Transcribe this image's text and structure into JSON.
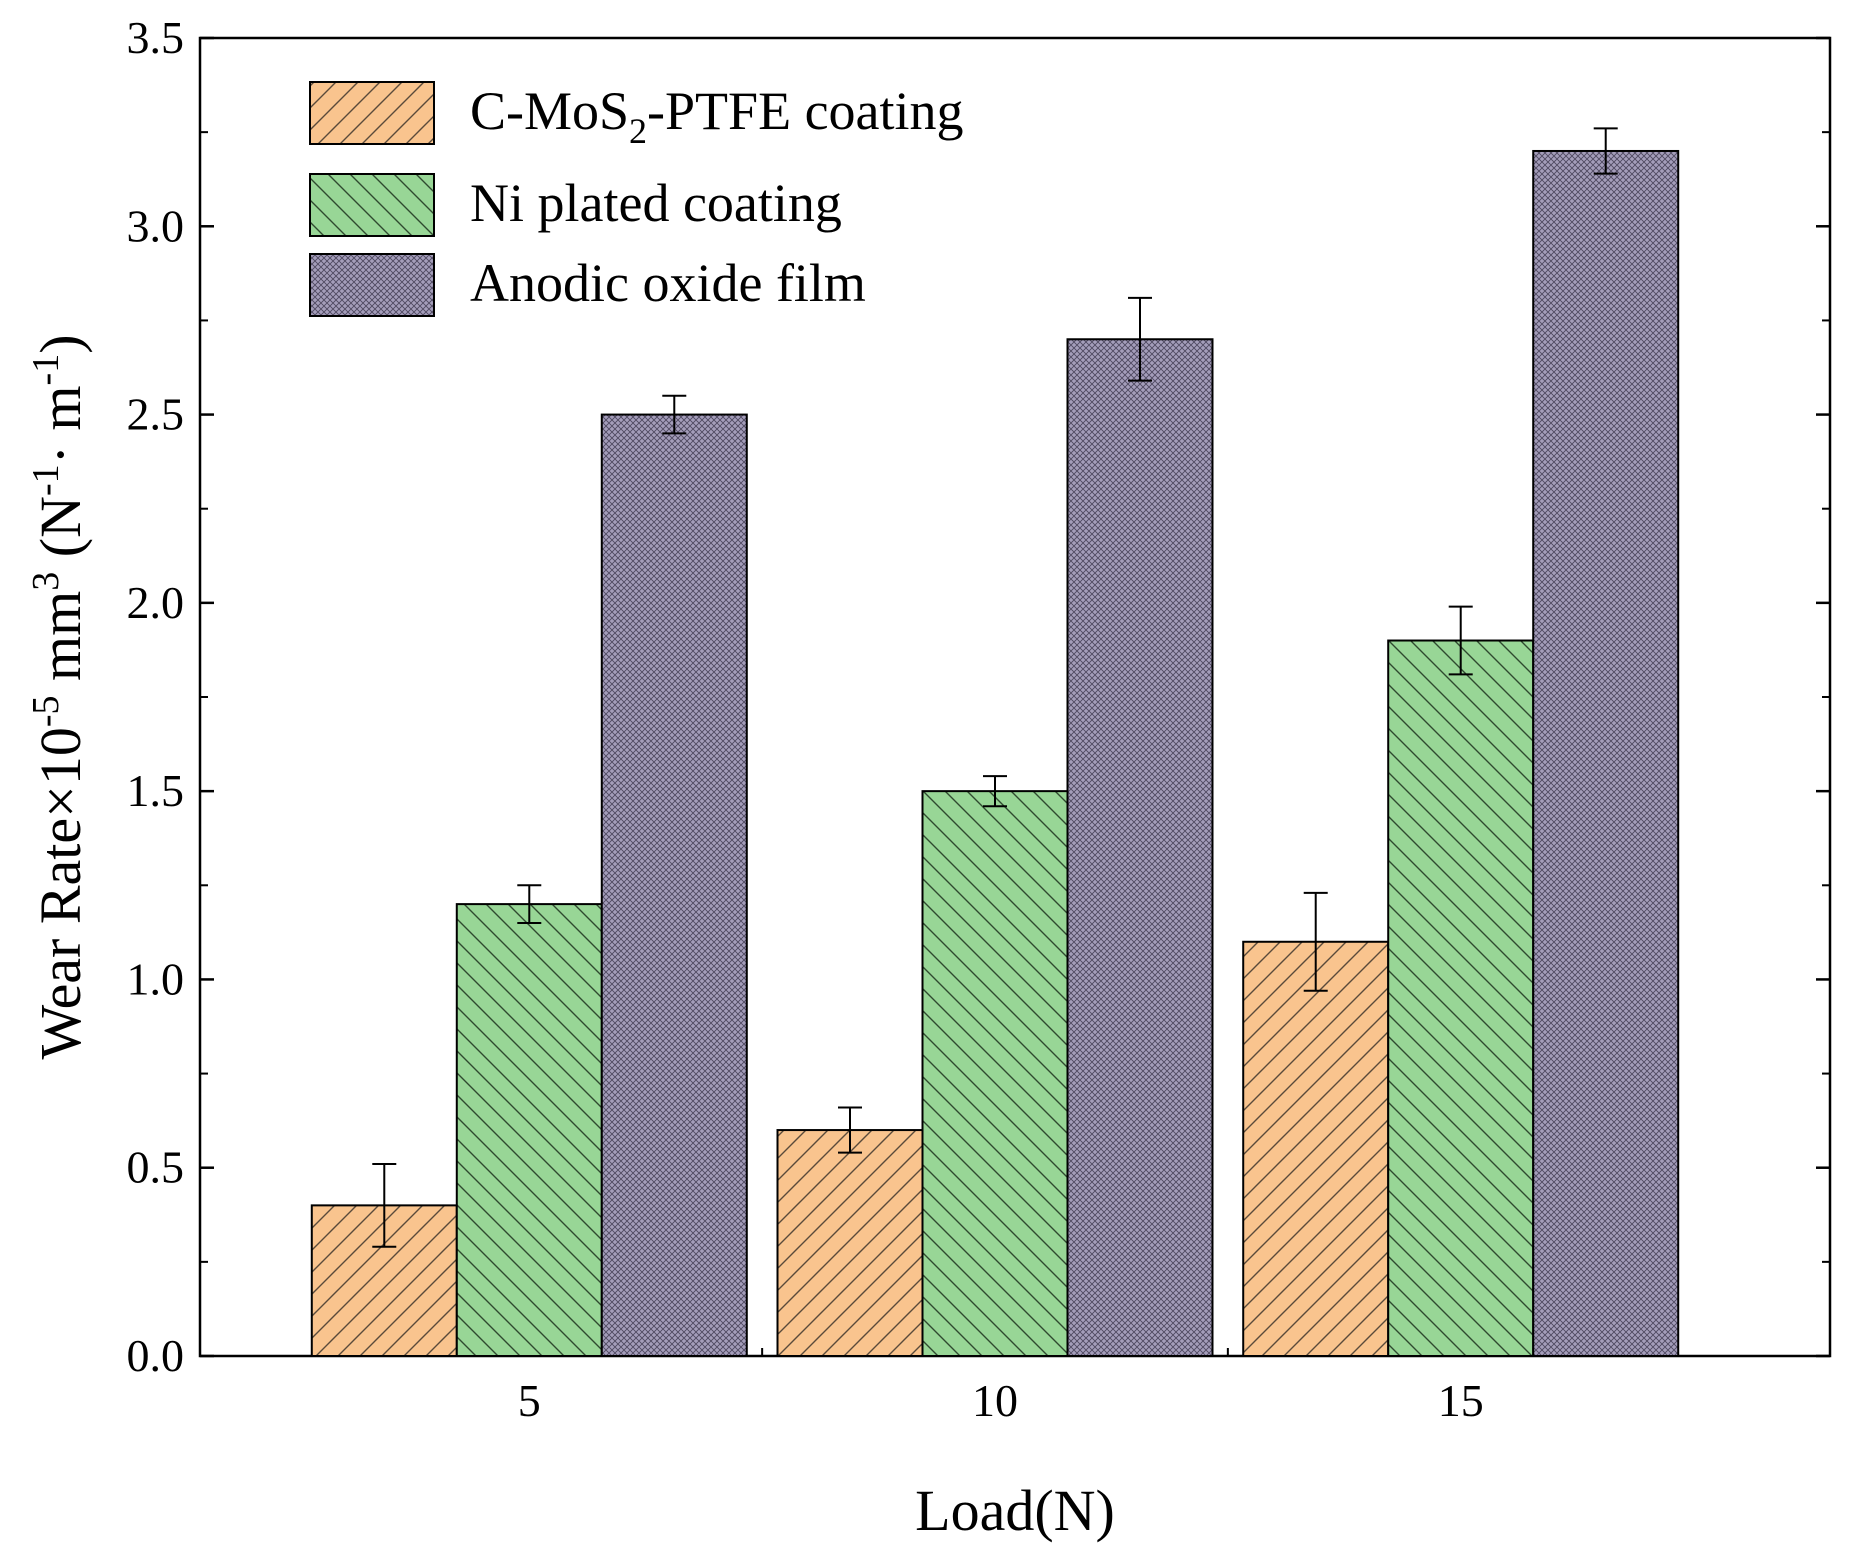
{
  "chart_data": {
    "type": "bar",
    "title": "",
    "xlabel": "Load(N)",
    "ylabel": {
      "prefix": "Wear Rate×10",
      "exp1": "-5",
      "mid": " mm",
      "exp2": "3",
      "mid2": " (N",
      "exp3": "-1",
      "mid3": "· m",
      "exp4": "-1",
      "suffix": ")"
    },
    "categories": [
      "5",
      "10",
      "15"
    ],
    "ylim": [
      0,
      3.5
    ],
    "yticks": [
      "0.0",
      "0.5",
      "1.0",
      "1.5",
      "2.0",
      "2.5",
      "3.0",
      "3.5"
    ],
    "ytick_values": [
      0,
      0.5,
      1.0,
      1.5,
      2.0,
      2.5,
      3.0,
      3.5
    ],
    "legend_position": "top-left",
    "series": [
      {
        "name": "C-MoS2-PTFE coating",
        "label_parts": [
          "C-MoS",
          "2",
          "-PTFE coating"
        ],
        "color": "#f9c48e",
        "pattern": "hatch-forward",
        "values": [
          0.4,
          0.6,
          1.1
        ],
        "errors": [
          0.11,
          0.06,
          0.13
        ]
      },
      {
        "name": "Ni plated coating",
        "label_parts": [
          "Ni plated coating"
        ],
        "color": "#98d696",
        "pattern": "hatch-back",
        "values": [
          1.2,
          1.5,
          1.9
        ],
        "errors": [
          0.05,
          0.04,
          0.09
        ]
      },
      {
        "name": "Anodic oxide film",
        "label_parts": [
          "Anodic oxide film"
        ],
        "color": "#9b94ad",
        "pattern": "crosshatch",
        "values": [
          2.5,
          2.7,
          3.2
        ],
        "errors": [
          0.05,
          0.11,
          0.06
        ]
      }
    ]
  }
}
